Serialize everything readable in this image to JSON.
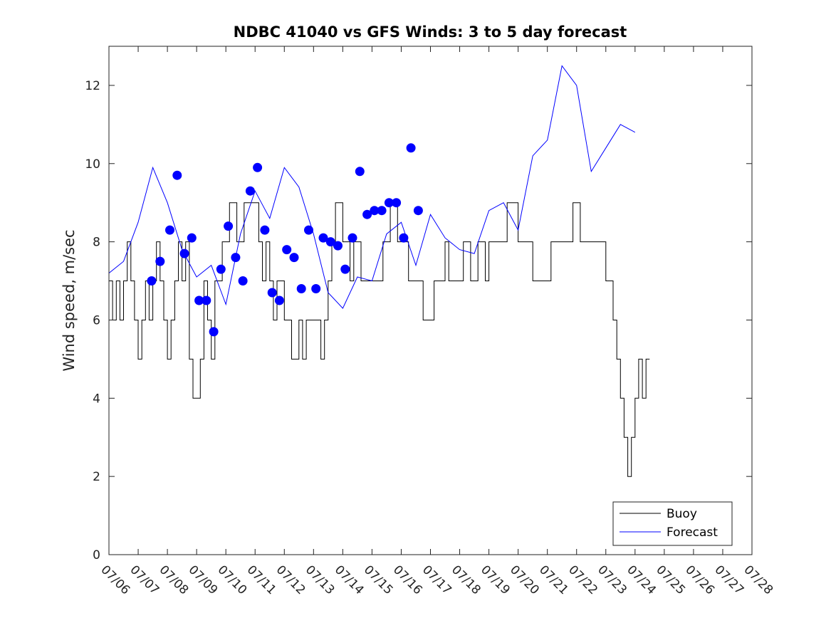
{
  "chart_data": {
    "type": "line",
    "title": "NDBC 41040 vs GFS Winds: 3 to 5 day forecast",
    "xlabel": "",
    "ylabel": "Wind speed, m/sec",
    "xlim": [
      "07/06",
      "07/28"
    ],
    "ylim": [
      0,
      13
    ],
    "x_ticks": [
      "07/06",
      "07/07",
      "07/08",
      "07/09",
      "07/10",
      "07/11",
      "07/12",
      "07/13",
      "07/14",
      "07/15",
      "07/16",
      "07/17",
      "07/18",
      "07/19",
      "07/20",
      "07/21",
      "07/22",
      "07/23",
      "07/24",
      "07/25",
      "07/26",
      "07/27",
      "07/28"
    ],
    "y_ticks": [
      "0",
      "2",
      "4",
      "6",
      "8",
      "10",
      "12"
    ],
    "grid": false,
    "legend_position": "bottom-right",
    "colors": {
      "buoy": "#000000",
      "forecast": "#0000ff"
    },
    "series": [
      {
        "name": "Buoy",
        "style": "step-line",
        "points": [
          [
            "07/06 00:00",
            7
          ],
          [
            "07/06 03:00",
            6
          ],
          [
            "07/06 06:00",
            7
          ],
          [
            "07/06 09:00",
            6
          ],
          [
            "07/06 12:00",
            7
          ],
          [
            "07/06 15:00",
            8
          ],
          [
            "07/06 18:00",
            7
          ],
          [
            "07/06 21:00",
            6
          ],
          [
            "07/07 00:00",
            5
          ],
          [
            "07/07 03:00",
            6
          ],
          [
            "07/07 06:00",
            7
          ],
          [
            "07/07 09:00",
            6
          ],
          [
            "07/07 12:00",
            7
          ],
          [
            "07/07 15:00",
            8
          ],
          [
            "07/07 18:00",
            7
          ],
          [
            "07/07 21:00",
            6
          ],
          [
            "07/08 00:00",
            5
          ],
          [
            "07/08 03:00",
            6
          ],
          [
            "07/08 06:00",
            7
          ],
          [
            "07/08 09:00",
            8
          ],
          [
            "07/08 12:00",
            7
          ],
          [
            "07/08 15:00",
            8
          ],
          [
            "07/08 18:00",
            5
          ],
          [
            "07/08 21:00",
            4
          ],
          [
            "07/09 00:00",
            4
          ],
          [
            "07/09 03:00",
            5
          ],
          [
            "07/09 06:00",
            7
          ],
          [
            "07/09 09:00",
            6
          ],
          [
            "07/09 12:00",
            5
          ],
          [
            "07/09 15:00",
            7
          ],
          [
            "07/09 18:00",
            7
          ],
          [
            "07/09 21:00",
            8
          ],
          [
            "07/10 00:00",
            8
          ],
          [
            "07/10 03:00",
            9
          ],
          [
            "07/10 06:00",
            9
          ],
          [
            "07/10 09:00",
            8
          ],
          [
            "07/10 12:00",
            8
          ],
          [
            "07/10 15:00",
            9
          ],
          [
            "07/10 18:00",
            9
          ],
          [
            "07/10 21:00",
            9
          ],
          [
            "07/11 00:00",
            9
          ],
          [
            "07/11 03:00",
            8
          ],
          [
            "07/11 06:00",
            7
          ],
          [
            "07/11 09:00",
            8
          ],
          [
            "07/11 12:00",
            7
          ],
          [
            "07/11 15:00",
            6
          ],
          [
            "07/11 18:00",
            7
          ],
          [
            "07/11 21:00",
            7
          ],
          [
            "07/12 00:00",
            6
          ],
          [
            "07/12 03:00",
            6
          ],
          [
            "07/12 06:00",
            5
          ],
          [
            "07/12 09:00",
            5
          ],
          [
            "07/12 12:00",
            6
          ],
          [
            "07/12 15:00",
            5
          ],
          [
            "07/12 18:00",
            6
          ],
          [
            "07/12 21:00",
            6
          ],
          [
            "07/13 00:00",
            6
          ],
          [
            "07/13 03:00",
            6
          ],
          [
            "07/13 06:00",
            5
          ],
          [
            "07/13 09:00",
            6
          ],
          [
            "07/13 12:00",
            7
          ],
          [
            "07/13 15:00",
            8
          ],
          [
            "07/13 18:00",
            9
          ],
          [
            "07/13 21:00",
            9
          ],
          [
            "07/14 00:00",
            8
          ],
          [
            "07/14 03:00",
            8
          ],
          [
            "07/14 06:00",
            7
          ],
          [
            "07/14 09:00",
            8
          ],
          [
            "07/14 12:00",
            8
          ],
          [
            "07/14 15:00",
            7
          ],
          [
            "07/14 18:00",
            7
          ],
          [
            "07/14 21:00",
            7
          ],
          [
            "07/15 00:00",
            7
          ],
          [
            "07/15 03:00",
            7
          ],
          [
            "07/15 06:00",
            7
          ],
          [
            "07/15 09:00",
            8
          ],
          [
            "07/15 12:00",
            8
          ],
          [
            "07/15 15:00",
            9
          ],
          [
            "07/15 18:00",
            9
          ],
          [
            "07/15 21:00",
            8
          ],
          [
            "07/16 00:00",
            8
          ],
          [
            "07/16 03:00",
            8
          ],
          [
            "07/16 06:00",
            7
          ],
          [
            "07/16 09:00",
            7
          ],
          [
            "07/16 12:00",
            7
          ],
          [
            "07/16 15:00",
            7
          ],
          [
            "07/16 18:00",
            6
          ],
          [
            "07/16 21:00",
            6
          ],
          [
            "07/17 00:00",
            6
          ],
          [
            "07/17 03:00",
            7
          ],
          [
            "07/17 06:00",
            7
          ],
          [
            "07/17 09:00",
            7
          ],
          [
            "07/17 12:00",
            8
          ],
          [
            "07/17 15:00",
            7
          ],
          [
            "07/17 18:00",
            7
          ],
          [
            "07/17 21:00",
            7
          ],
          [
            "07/18 00:00",
            7
          ],
          [
            "07/18 03:00",
            8
          ],
          [
            "07/18 06:00",
            8
          ],
          [
            "07/18 09:00",
            7
          ],
          [
            "07/18 12:00",
            7
          ],
          [
            "07/18 15:00",
            8
          ],
          [
            "07/18 18:00",
            8
          ],
          [
            "07/18 21:00",
            7
          ],
          [
            "07/19 00:00",
            8
          ],
          [
            "07/19 03:00",
            8
          ],
          [
            "07/19 06:00",
            8
          ],
          [
            "07/19 09:00",
            8
          ],
          [
            "07/19 12:00",
            8
          ],
          [
            "07/19 15:00",
            9
          ],
          [
            "07/19 18:00",
            9
          ],
          [
            "07/19 21:00",
            9
          ],
          [
            "07/20 00:00",
            8
          ],
          [
            "07/20 03:00",
            8
          ],
          [
            "07/20 06:00",
            8
          ],
          [
            "07/20 09:00",
            8
          ],
          [
            "07/20 12:00",
            7
          ],
          [
            "07/20 15:00",
            7
          ],
          [
            "07/20 18:00",
            7
          ],
          [
            "07/20 21:00",
            7
          ],
          [
            "07/21 00:00",
            7
          ],
          [
            "07/21 03:00",
            8
          ],
          [
            "07/21 06:00",
            8
          ],
          [
            "07/21 09:00",
            8
          ],
          [
            "07/21 12:00",
            8
          ],
          [
            "07/21 15:00",
            8
          ],
          [
            "07/21 18:00",
            8
          ],
          [
            "07/21 21:00",
            9
          ],
          [
            "07/22 00:00",
            9
          ],
          [
            "07/22 03:00",
            8
          ],
          [
            "07/22 06:00",
            8
          ],
          [
            "07/22 09:00",
            8
          ],
          [
            "07/22 12:00",
            8
          ],
          [
            "07/22 15:00",
            8
          ],
          [
            "07/22 18:00",
            8
          ],
          [
            "07/22 21:00",
            8
          ],
          [
            "07/23 00:00",
            7
          ],
          [
            "07/23 03:00",
            7
          ],
          [
            "07/23 06:00",
            6
          ],
          [
            "07/23 09:00",
            5
          ],
          [
            "07/23 12:00",
            4
          ],
          [
            "07/23 15:00",
            3
          ],
          [
            "07/23 18:00",
            2
          ],
          [
            "07/23 21:00",
            3
          ],
          [
            "07/24 00:00",
            4
          ],
          [
            "07/24 03:00",
            5
          ],
          [
            "07/24 06:00",
            4
          ],
          [
            "07/24 09:00",
            5
          ],
          [
            "07/24 12:00",
            5
          ]
        ]
      },
      {
        "name": "Forecast",
        "style": "line",
        "points": [
          [
            "07/06 00:00",
            7.2
          ],
          [
            "07/06 12:00",
            7.5
          ],
          [
            "07/07 00:00",
            8.5
          ],
          [
            "07/07 12:00",
            9.9
          ],
          [
            "07/08 00:00",
            9.0
          ],
          [
            "07/08 12:00",
            7.8
          ],
          [
            "07/09 00:00",
            7.1
          ],
          [
            "07/09 12:00",
            7.4
          ],
          [
            "07/10 00:00",
            6.4
          ],
          [
            "07/10 12:00",
            8.2
          ],
          [
            "07/11 00:00",
            9.3
          ],
          [
            "07/11 12:00",
            8.6
          ],
          [
            "07/12 00:00",
            9.9
          ],
          [
            "07/12 12:00",
            9.4
          ],
          [
            "07/13 00:00",
            8.2
          ],
          [
            "07/13 12:00",
            6.7
          ],
          [
            "07/14 00:00",
            6.3
          ],
          [
            "07/14 12:00",
            7.1
          ],
          [
            "07/15 00:00",
            7.0
          ],
          [
            "07/15 12:00",
            8.2
          ],
          [
            "07/16 00:00",
            8.5
          ],
          [
            "07/16 12:00",
            7.4
          ],
          [
            "07/17 00:00",
            8.7
          ],
          [
            "07/17 12:00",
            8.1
          ],
          [
            "07/18 00:00",
            7.8
          ],
          [
            "07/18 12:00",
            7.7
          ],
          [
            "07/19 00:00",
            8.8
          ],
          [
            "07/19 12:00",
            9.0
          ],
          [
            "07/20 00:00",
            8.3
          ],
          [
            "07/20 12:00",
            10.2
          ],
          [
            "07/21 00:00",
            10.6
          ],
          [
            "07/21 12:00",
            12.5
          ],
          [
            "07/22 00:00",
            12.0
          ],
          [
            "07/22 12:00",
            9.8
          ],
          [
            "07/23 00:00",
            10.4
          ],
          [
            "07/23 12:00",
            11.0
          ],
          [
            "07/24 00:00",
            10.8
          ]
        ],
        "markers": [
          [
            "07/07 11:00",
            7.0
          ],
          [
            "07/07 18:00",
            7.5
          ],
          [
            "07/08 02:00",
            8.3
          ],
          [
            "07/08 08:00",
            9.7
          ],
          [
            "07/08 14:00",
            7.7
          ],
          [
            "07/08 20:00",
            8.1
          ],
          [
            "07/09 02:00",
            6.5
          ],
          [
            "07/09 08:00",
            6.5
          ],
          [
            "07/09 14:00",
            5.7
          ],
          [
            "07/09 20:00",
            7.3
          ],
          [
            "07/10 02:00",
            8.4
          ],
          [
            "07/10 08:00",
            7.6
          ],
          [
            "07/10 14:00",
            7.0
          ],
          [
            "07/10 20:00",
            9.3
          ],
          [
            "07/11 02:00",
            9.9
          ],
          [
            "07/11 08:00",
            8.3
          ],
          [
            "07/11 14:00",
            6.7
          ],
          [
            "07/11 20:00",
            6.5
          ],
          [
            "07/12 02:00",
            7.8
          ],
          [
            "07/12 08:00",
            7.6
          ],
          [
            "07/12 14:00",
            6.8
          ],
          [
            "07/12 20:00",
            8.3
          ],
          [
            "07/13 02:00",
            6.8
          ],
          [
            "07/13 08:00",
            8.1
          ],
          [
            "07/13 14:00",
            8.0
          ],
          [
            "07/13 20:00",
            7.9
          ],
          [
            "07/14 02:00",
            7.3
          ],
          [
            "07/14 08:00",
            8.1
          ],
          [
            "07/14 14:00",
            9.8
          ],
          [
            "07/14 20:00",
            8.7
          ],
          [
            "07/15 02:00",
            8.8
          ],
          [
            "07/15 08:00",
            8.8
          ],
          [
            "07/15 14:00",
            9.0
          ],
          [
            "07/15 20:00",
            9.0
          ],
          [
            "07/16 02:00",
            8.1
          ],
          [
            "07/16 08:00",
            10.4
          ],
          [
            "07/16 14:00",
            8.8
          ]
        ]
      }
    ]
  }
}
